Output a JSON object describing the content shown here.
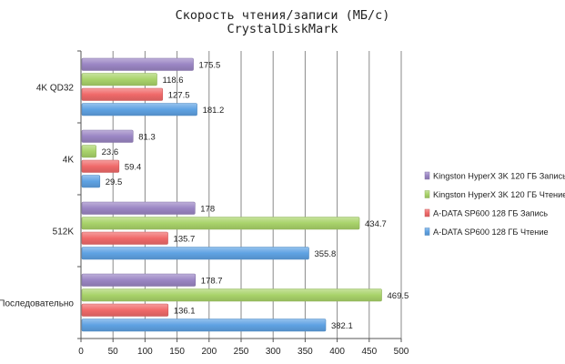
{
  "chart_data": {
    "type": "bar",
    "orientation": "horizontal",
    "title": "Скорость чтения/записи (МБ/с)",
    "subtitle": "CrystalDiskMark",
    "categories": [
      "4K QD32",
      "4K",
      "512K",
      "Последовательно"
    ],
    "series": [
      {
        "name": "Kingston HyperX 3K 120 ГБ Запись",
        "color": "#9B86C4",
        "values": [
          175.5,
          81.3,
          178,
          178.7
        ],
        "labels": [
          "175.5",
          "81.3",
          "178",
          "178.7"
        ]
      },
      {
        "name": "Kingston HyperX 3K 120 ГБ Чтение",
        "color": "#A9D36A",
        "values": [
          118.6,
          23.6,
          434.7,
          469.5
        ],
        "labels": [
          "118.6",
          "23.6",
          "434.7",
          "469.5"
        ]
      },
      {
        "name": "A-DATA SP600 128 ГБ Запись",
        "color": "#F06A6A",
        "values": [
          127.5,
          59.4,
          135.7,
          136.1
        ],
        "labels": [
          "127.5",
          "59.4",
          "135.7",
          "136.1"
        ]
      },
      {
        "name": "A-DATA SP600 128 ГБ Чтение",
        "color": "#5FA2E3",
        "values": [
          181.2,
          29.5,
          355.8,
          382.1
        ],
        "labels": [
          "181.2",
          "29.5",
          "355.8",
          "382.1"
        ]
      }
    ],
    "xlim": [
      0,
      500
    ],
    "xticks": [
      "0",
      "50",
      "100",
      "150",
      "200",
      "250",
      "300",
      "350",
      "400",
      "450",
      "500"
    ],
    "grid": true,
    "legend": "right"
  }
}
